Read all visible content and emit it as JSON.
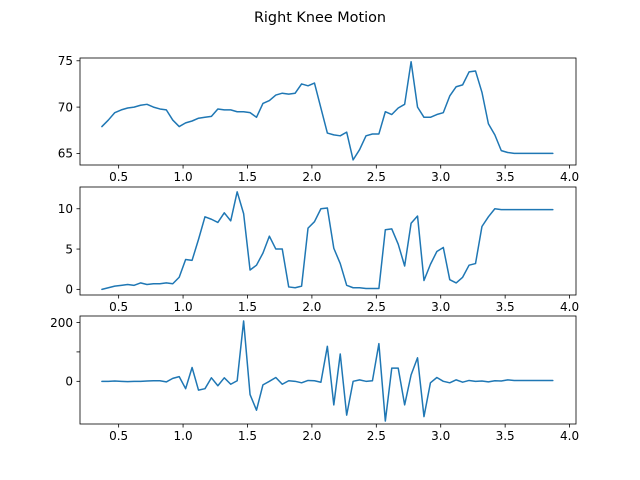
{
  "figure": {
    "title": "Right Knee Motion"
  },
  "chart_data": [
    {
      "type": "line",
      "title": "",
      "xlabel": "",
      "ylabel": "",
      "xlim": [
        0.2,
        4.05
      ],
      "ylim": [
        63.75,
        75.3
      ],
      "xticks": [
        0.5,
        1.0,
        1.5,
        2.0,
        2.5,
        3.0,
        3.5,
        4.0
      ],
      "xtick_labels": [
        "0.5",
        "1.0",
        "1.5",
        "2.0",
        "2.5",
        "3.0",
        "3.5",
        "4.0"
      ],
      "yticks": [
        65,
        70,
        75
      ],
      "ytick_labels": [
        "65",
        "70",
        "75"
      ],
      "grid": false,
      "series": [
        {
          "color": "#1f77b4",
          "x": [
            0.37,
            0.42,
            0.47,
            0.52,
            0.57,
            0.62,
            0.67,
            0.72,
            0.77,
            0.82,
            0.87,
            0.92,
            0.97,
            1.02,
            1.07,
            1.12,
            1.17,
            1.22,
            1.27,
            1.32,
            1.37,
            1.42,
            1.47,
            1.52,
            1.57,
            1.62,
            1.67,
            1.72,
            1.77,
            1.82,
            1.87,
            1.92,
            1.97,
            2.02,
            2.07,
            2.12,
            2.17,
            2.22,
            2.27,
            2.32,
            2.37,
            2.42,
            2.47,
            2.52,
            2.57,
            2.62,
            2.67,
            2.72,
            2.77,
            2.82,
            2.87,
            2.92,
            2.97,
            3.02,
            3.07,
            3.12,
            3.17,
            3.22,
            3.27,
            3.32,
            3.37,
            3.42,
            3.47,
            3.52,
            3.57,
            3.62,
            3.67,
            3.72,
            3.77,
            3.82,
            3.87
          ],
          "y": [
            67.9,
            68.6,
            69.4,
            69.7,
            69.9,
            70.0,
            70.2,
            70.3,
            70.0,
            69.8,
            69.7,
            68.6,
            67.9,
            68.3,
            68.5,
            68.8,
            68.9,
            69.0,
            69.8,
            69.7,
            69.7,
            69.5,
            69.5,
            69.4,
            68.9,
            70.4,
            70.7,
            71.3,
            71.5,
            71.4,
            71.5,
            72.5,
            72.3,
            72.6,
            69.9,
            67.2,
            67.0,
            66.9,
            67.3,
            64.3,
            65.4,
            66.9,
            67.1,
            67.1,
            69.5,
            69.2,
            69.9,
            70.3,
            74.9,
            70.0,
            68.9,
            68.9,
            69.2,
            69.4,
            71.2,
            72.2,
            72.4,
            73.8,
            73.9,
            71.6,
            68.2,
            67.0,
            65.3,
            65.1,
            65.0,
            65.0,
            65.0,
            65.0,
            65.0,
            65.0,
            65.0
          ]
        }
      ]
    },
    {
      "type": "line",
      "title": "",
      "xlabel": "",
      "ylabel": "",
      "xlim": [
        0.2,
        4.05
      ],
      "ylim": [
        -0.7,
        12.7
      ],
      "xticks": [
        0.5,
        1.0,
        1.5,
        2.0,
        2.5,
        3.0,
        3.5,
        4.0
      ],
      "xtick_labels": [
        "0.5",
        "1.0",
        "1.5",
        "2.0",
        "2.5",
        "3.0",
        "3.5",
        "4.0"
      ],
      "yticks": [
        0,
        5,
        10
      ],
      "ytick_labels": [
        "0",
        "5",
        "10"
      ],
      "grid": false,
      "series": [
        {
          "color": "#1f77b4",
          "x": [
            0.37,
            0.42,
            0.47,
            0.52,
            0.57,
            0.62,
            0.67,
            0.72,
            0.77,
            0.82,
            0.87,
            0.92,
            0.97,
            1.02,
            1.07,
            1.12,
            1.17,
            1.22,
            1.27,
            1.32,
            1.37,
            1.42,
            1.47,
            1.52,
            1.57,
            1.62,
            1.67,
            1.72,
            1.77,
            1.82,
            1.87,
            1.92,
            1.97,
            2.02,
            2.07,
            2.12,
            2.17,
            2.22,
            2.27,
            2.32,
            2.37,
            2.42,
            2.47,
            2.52,
            2.57,
            2.62,
            2.67,
            2.72,
            2.77,
            2.82,
            2.87,
            2.92,
            2.97,
            3.02,
            3.07,
            3.12,
            3.17,
            3.22,
            3.27,
            3.32,
            3.37,
            3.42,
            3.47,
            3.52,
            3.57,
            3.62,
            3.67,
            3.72,
            3.77,
            3.82,
            3.87
          ],
          "y": [
            0.0,
            0.2,
            0.4,
            0.5,
            0.6,
            0.5,
            0.8,
            0.6,
            0.7,
            0.7,
            0.8,
            0.7,
            1.5,
            3.7,
            3.6,
            6.2,
            9.0,
            8.7,
            8.3,
            9.5,
            8.5,
            12.1,
            9.4,
            2.4,
            3.0,
            4.5,
            6.6,
            5.0,
            5.0,
            0.3,
            0.2,
            0.4,
            7.6,
            8.4,
            10.0,
            10.1,
            5.1,
            3.2,
            0.5,
            0.2,
            0.2,
            0.1,
            0.1,
            0.1,
            7.4,
            7.5,
            5.6,
            2.9,
            8.2,
            9.1,
            1.1,
            3.1,
            4.7,
            5.2,
            1.2,
            0.8,
            1.5,
            3.0,
            3.2,
            7.8,
            9.0,
            10.0,
            9.9,
            9.9,
            9.9,
            9.9,
            9.9,
            9.9,
            9.9,
            9.9,
            9.9
          ]
        }
      ]
    },
    {
      "type": "line",
      "title": "",
      "xlabel": "",
      "ylabel": "",
      "xlim": [
        0.2,
        4.05
      ],
      "ylim": [
        -145,
        222
      ],
      "xticks": [
        0.5,
        1.0,
        1.5,
        2.0,
        2.5,
        3.0,
        3.5,
        4.0
      ],
      "xtick_labels": [
        "0.5",
        "1.0",
        "1.5",
        "2.0",
        "2.5",
        "3.0",
        "3.5",
        "4.0"
      ],
      "yticks": [
        0,
        100,
        200
      ],
      "ytick_labels": [
        "0",
        "",
        "200"
      ],
      "grid": false,
      "series": [
        {
          "color": "#1f77b4",
          "x": [
            0.37,
            0.42,
            0.47,
            0.52,
            0.57,
            0.62,
            0.67,
            0.72,
            0.77,
            0.82,
            0.87,
            0.92,
            0.97,
            1.02,
            1.07,
            1.12,
            1.17,
            1.22,
            1.27,
            1.32,
            1.37,
            1.42,
            1.47,
            1.52,
            1.57,
            1.62,
            1.67,
            1.72,
            1.77,
            1.82,
            1.87,
            1.92,
            1.97,
            2.02,
            2.07,
            2.12,
            2.17,
            2.22,
            2.27,
            2.32,
            2.37,
            2.42,
            2.47,
            2.52,
            2.57,
            2.62,
            2.67,
            2.72,
            2.77,
            2.82,
            2.87,
            2.92,
            2.97,
            3.02,
            3.07,
            3.12,
            3.17,
            3.22,
            3.27,
            3.32,
            3.37,
            3.42,
            3.47,
            3.52,
            3.57,
            3.62,
            3.67,
            3.72,
            3.77,
            3.82,
            3.87
          ],
          "y": [
            0,
            0,
            1,
            0,
            -1,
            0,
            0,
            1,
            2,
            2,
            -2,
            10,
            16,
            -25,
            47,
            -30,
            -25,
            12,
            -15,
            12,
            -10,
            2,
            205,
            -45,
            -98,
            -12,
            0,
            13,
            -10,
            2,
            0,
            -5,
            3,
            2,
            -3,
            119,
            -80,
            93,
            -115,
            0,
            5,
            0,
            2,
            128,
            -135,
            45,
            45,
            -80,
            22,
            80,
            -120,
            -5,
            13,
            0,
            -5,
            5,
            -3,
            3,
            0,
            1,
            -2,
            2,
            1,
            5,
            3,
            3,
            3,
            3,
            3,
            3,
            3
          ]
        }
      ]
    }
  ]
}
